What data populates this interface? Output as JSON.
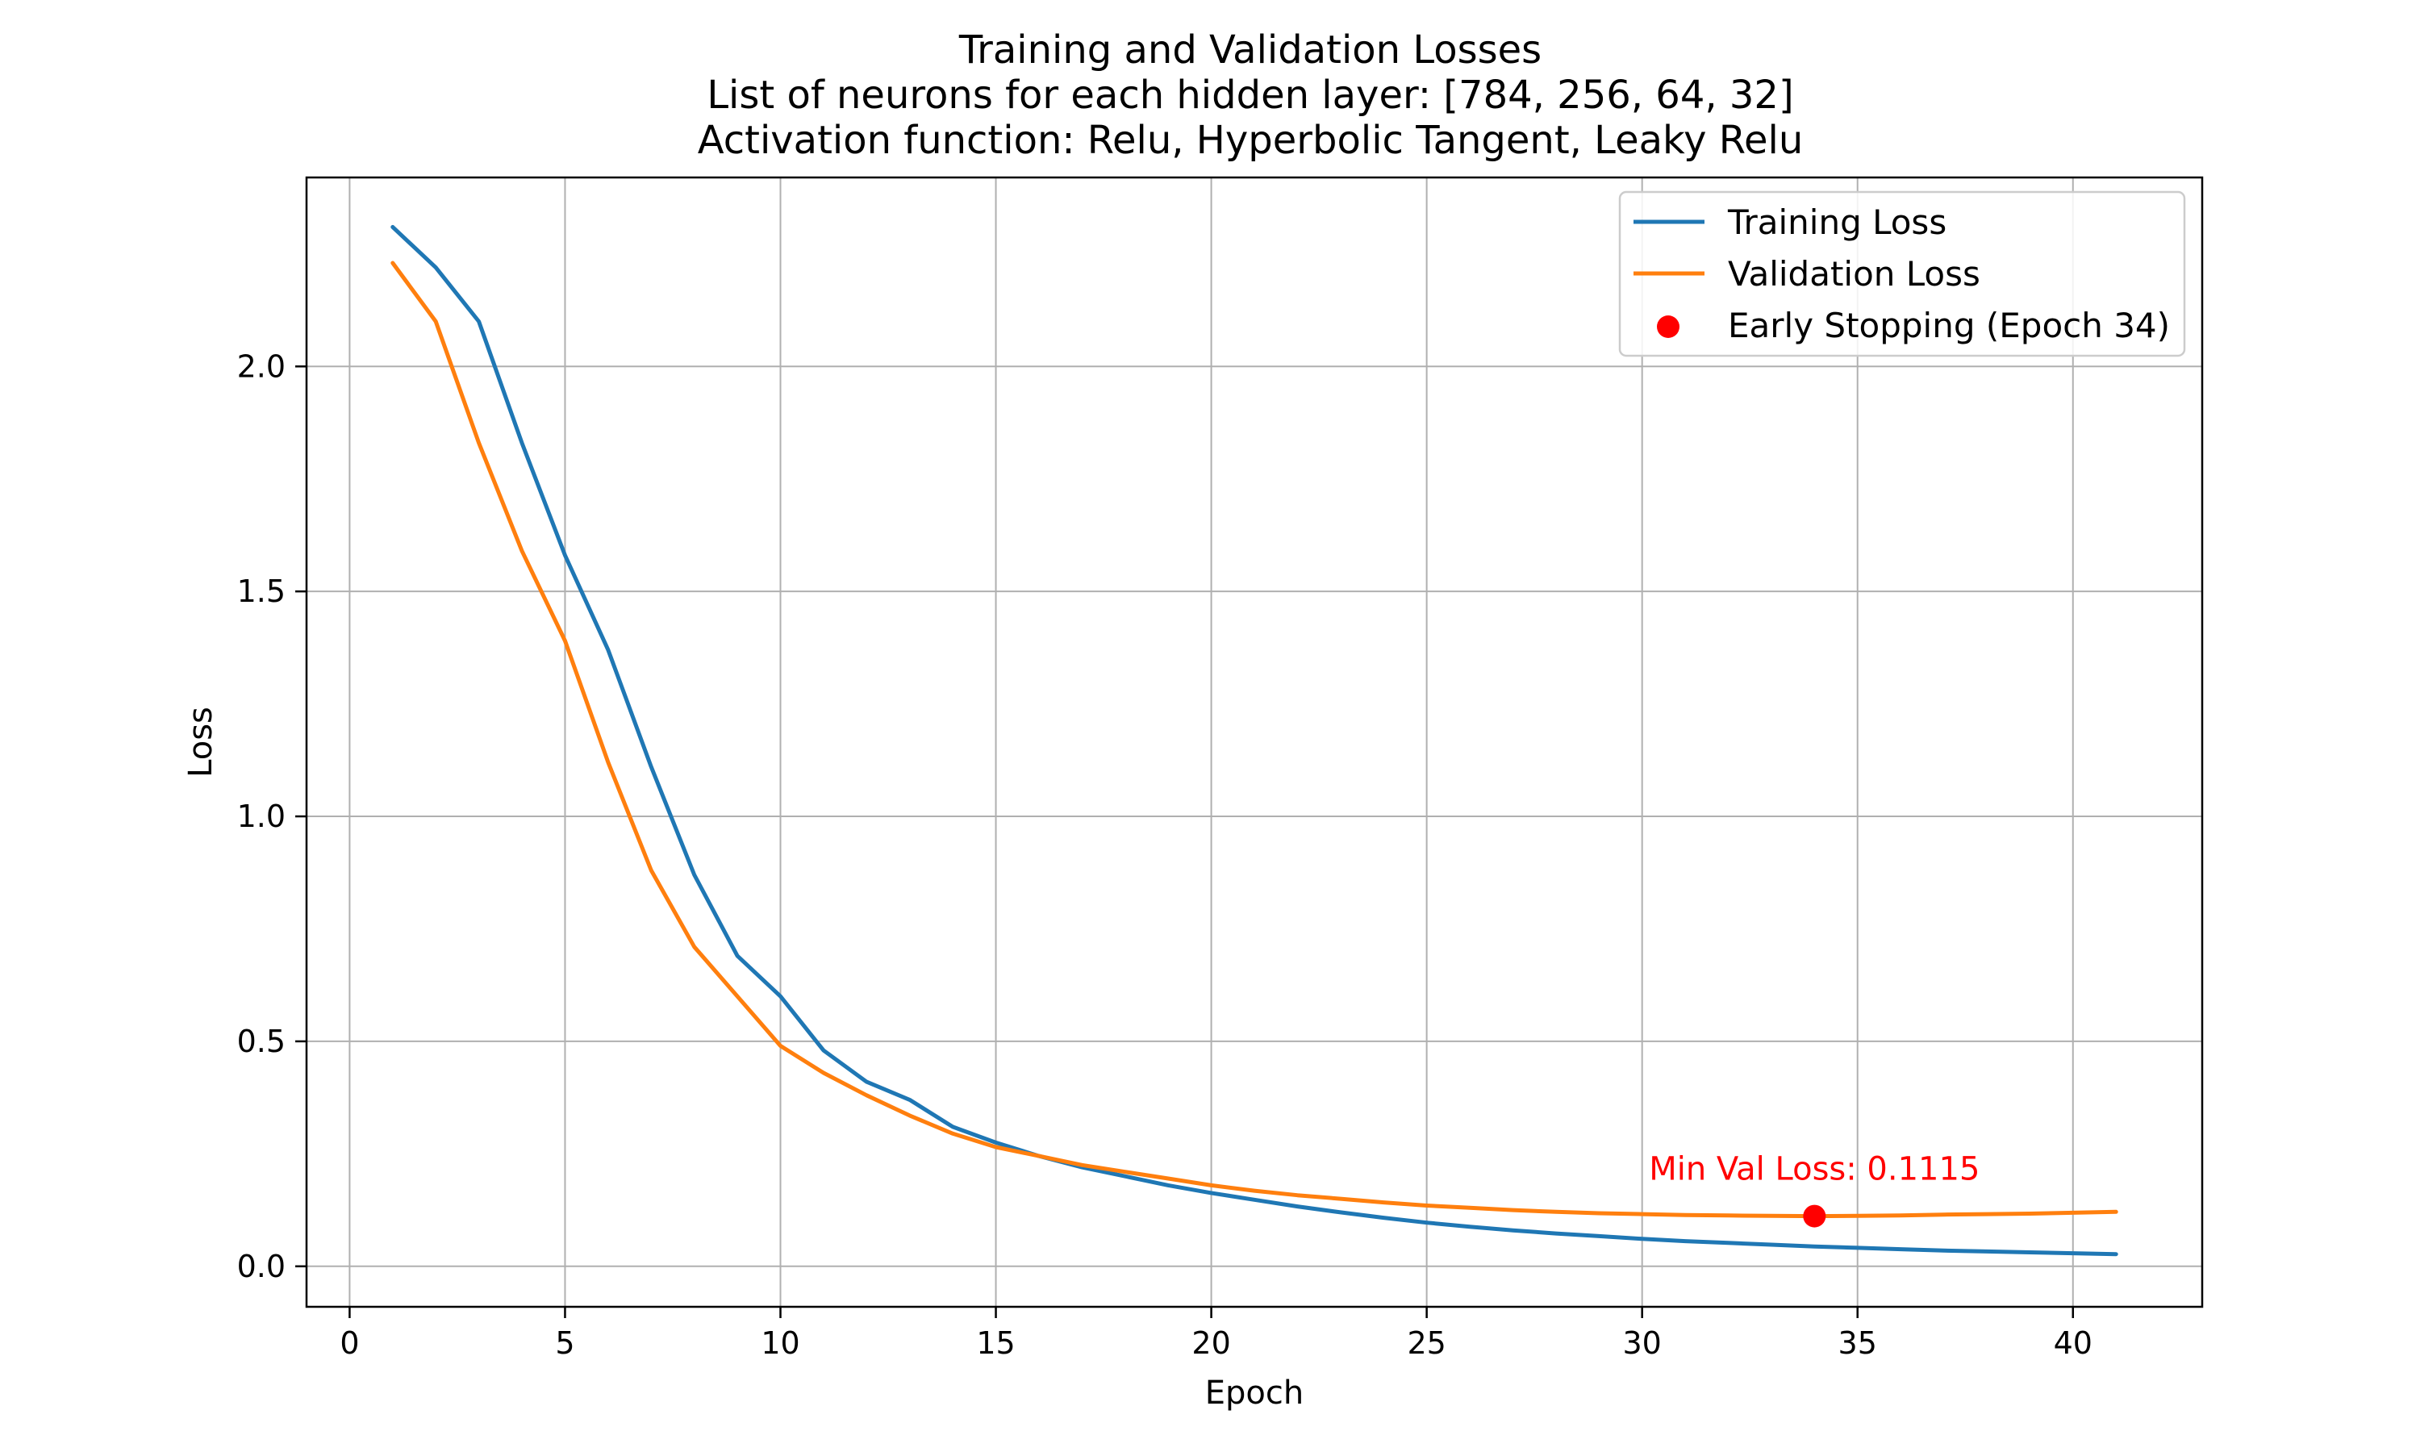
{
  "chart_data": {
    "type": "line",
    "title_lines": [
      "Training and Validation Losses",
      "List of neurons for each hidden layer: [784, 256, 64, 32]",
      "Activation function: Relu, Hyperbolic Tangent, Leaky Relu"
    ],
    "xlabel": "Epoch",
    "ylabel": "Loss",
    "xlim": [
      -1,
      43
    ],
    "ylim": [
      -0.09,
      2.42
    ],
    "xticks": [
      0,
      5,
      10,
      15,
      20,
      25,
      30,
      35,
      40
    ],
    "yticks": [
      0.0,
      0.5,
      1.0,
      1.5,
      2.0
    ],
    "grid": true,
    "legend_position": "top-right",
    "x": [
      1,
      2,
      3,
      4,
      5,
      6,
      7,
      8,
      9,
      10,
      11,
      12,
      13,
      14,
      15,
      16,
      17,
      18,
      19,
      20,
      21,
      22,
      23,
      24,
      25,
      26,
      27,
      28,
      29,
      30,
      31,
      32,
      33,
      34,
      35,
      36,
      37,
      38,
      39,
      40,
      41
    ],
    "series": [
      {
        "name": "Training Loss",
        "color": "#1f77b4",
        "values": [
          2.31,
          2.22,
          2.1,
          1.83,
          1.58,
          1.37,
          1.11,
          0.87,
          0.69,
          0.6,
          0.48,
          0.41,
          0.37,
          0.31,
          0.275,
          0.245,
          0.22,
          0.2,
          0.18,
          0.163,
          0.148,
          0.133,
          0.12,
          0.108,
          0.097,
          0.088,
          0.08,
          0.073,
          0.067,
          0.061,
          0.056,
          0.052,
          0.048,
          0.044,
          0.041,
          0.038,
          0.035,
          0.033,
          0.031,
          0.029,
          0.027
        ]
      },
      {
        "name": "Validation Loss",
        "color": "#ff7f0e",
        "values": [
          2.23,
          2.1,
          1.83,
          1.59,
          1.39,
          1.12,
          0.88,
          0.71,
          0.6,
          0.49,
          0.43,
          0.38,
          0.335,
          0.295,
          0.265,
          0.245,
          0.225,
          0.21,
          0.195,
          0.18,
          0.168,
          0.158,
          0.15,
          0.142,
          0.135,
          0.13,
          0.125,
          0.121,
          0.118,
          0.116,
          0.114,
          0.113,
          0.112,
          0.1115,
          0.112,
          0.113,
          0.115,
          0.116,
          0.117,
          0.119,
          0.121
        ]
      }
    ],
    "marker": {
      "label": "Early Stopping (Epoch 34)",
      "x": 34,
      "y": 0.1115,
      "color": "#ff0000"
    },
    "annotation": {
      "text": "Min Val Loss: 0.1115",
      "color": "#ff0000"
    }
  }
}
